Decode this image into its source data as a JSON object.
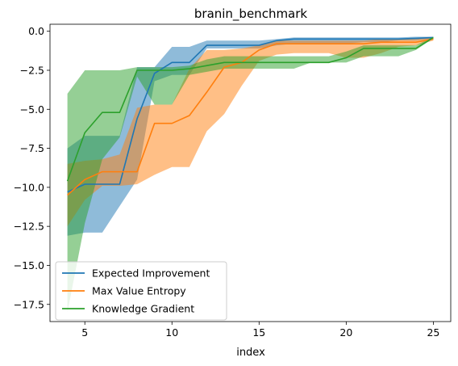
{
  "chart_data": {
    "type": "line",
    "title": "branin_benchmark",
    "xlabel": "index",
    "ylabel": "",
    "xlim": [
      3,
      26
    ],
    "ylim": [
      -18.6,
      0.45
    ],
    "xticks": [
      5,
      10,
      15,
      20,
      25
    ],
    "yticks": [
      0.0,
      -2.5,
      -5.0,
      -7.5,
      -10.0,
      -12.5,
      -15.0,
      -17.5
    ],
    "xtick_labels": [
      "5",
      "10",
      "15",
      "20",
      "25"
    ],
    "ytick_labels": [
      "0.0",
      "−2.5",
      "−5.0",
      "−7.5",
      "−10.0",
      "−12.5",
      "−15.0",
      "−17.5"
    ],
    "legend_position": "lower-left",
    "grid": false,
    "band_opacity": 0.5,
    "x": [
      4,
      5,
      6,
      7,
      8,
      9,
      10,
      11,
      12,
      13,
      14,
      15,
      16,
      17,
      18,
      19,
      20,
      21,
      22,
      23,
      24,
      25
    ],
    "series": [
      {
        "name": "Expected Improvement",
        "color": "#1f77b4",
        "mean": [
          -10.3,
          -9.8,
          -9.8,
          -9.8,
          -5.6,
          -2.7,
          -2.0,
          -2.0,
          -0.9,
          -0.9,
          -0.9,
          -0.9,
          -0.6,
          -0.5,
          -0.5,
          -0.5,
          -0.5,
          -0.5,
          -0.5,
          -0.5,
          -0.45,
          -0.4
        ],
        "upper": [
          -7.5,
          -6.7,
          -6.7,
          -6.7,
          -2.3,
          -2.3,
          -1.0,
          -1.0,
          -0.6,
          -0.6,
          -0.6,
          -0.6,
          -0.5,
          -0.4,
          -0.4,
          -0.4,
          -0.4,
          -0.4,
          -0.4,
          -0.4,
          -0.35,
          -0.35
        ],
        "lower": [
          -13.1,
          -12.9,
          -12.9,
          -11.2,
          -9.5,
          -3.2,
          -2.8,
          -2.8,
          -1.1,
          -1.1,
          -1.1,
          -1.1,
          -0.9,
          -0.8,
          -0.8,
          -0.8,
          -0.8,
          -0.7,
          -0.7,
          -0.6,
          -0.6,
          -0.5
        ]
      },
      {
        "name": "Max Value Entropy",
        "color": "#ff7f0e",
        "mean": [
          -10.5,
          -9.5,
          -9.0,
          -9.0,
          -9.0,
          -5.9,
          -5.9,
          -5.4,
          -3.9,
          -2.3,
          -2.0,
          -1.2,
          -0.8,
          -0.8,
          -0.8,
          -0.8,
          -0.8,
          -0.8,
          -0.7,
          -0.7,
          -0.7,
          -0.5
        ],
        "upper": [
          -8.5,
          -8.3,
          -8.2,
          -7.9,
          -4.9,
          -4.7,
          -4.7,
          -2.4,
          -1.2,
          -1.2,
          -1.1,
          -0.9,
          -0.6,
          -0.6,
          -0.6,
          -0.6,
          -0.6,
          -0.6,
          -0.5,
          -0.5,
          -0.5,
          -0.4
        ],
        "lower": [
          -12.5,
          -10.8,
          -9.9,
          -9.9,
          -9.8,
          -9.2,
          -8.7,
          -8.7,
          -6.4,
          -5.3,
          -3.5,
          -1.9,
          -1.5,
          -1.4,
          -1.4,
          -1.4,
          -1.7,
          -1.7,
          -1.4,
          -1.0,
          -0.9,
          -0.6
        ]
      },
      {
        "name": "Knowledge Gradient",
        "color": "#2ca02c",
        "mean": [
          -9.6,
          -6.5,
          -5.2,
          -5.2,
          -2.5,
          -2.5,
          -2.5,
          -2.4,
          -2.2,
          -2.0,
          -2.0,
          -2.0,
          -2.0,
          -2.0,
          -2.0,
          -2.0,
          -1.7,
          -1.1,
          -1.1,
          -1.1,
          -1.1,
          -0.4
        ],
        "upper": [
          -4.0,
          -2.5,
          -2.5,
          -2.5,
          -2.3,
          -2.3,
          -2.3,
          -2.2,
          -1.8,
          -1.6,
          -1.6,
          -1.6,
          -1.6,
          -1.6,
          -1.6,
          -1.6,
          -1.3,
          -0.9,
          -0.9,
          -0.9,
          -0.9,
          -0.35
        ],
        "lower": [
          -18.0,
          -12.3,
          -8.2,
          -6.8,
          -2.9,
          -4.7,
          -4.7,
          -2.8,
          -2.6,
          -2.4,
          -2.4,
          -2.4,
          -2.4,
          -2.4,
          -2.0,
          -2.0,
          -2.0,
          -1.6,
          -1.6,
          -1.6,
          -1.2,
          -0.45
        ]
      }
    ]
  }
}
